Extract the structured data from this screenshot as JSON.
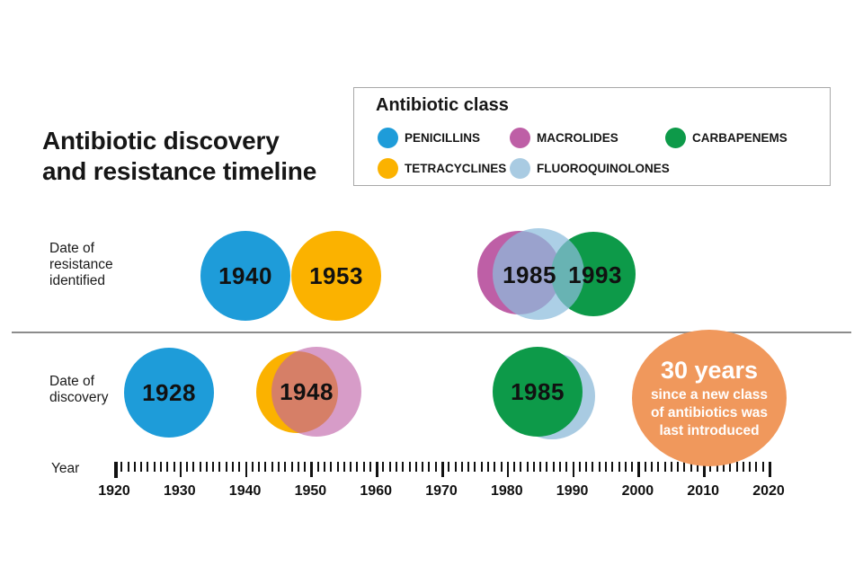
{
  "palette": {
    "penicillins_blue": "#1E9CD9",
    "tetracyclines_yellow": "#FBB200",
    "macrolides_magenta": "#BE5FA6",
    "fluoroquinolones_lightblue": "#A9CBE2",
    "carbapenems_green": "#0D9A49",
    "callout_orange": "#F0985C",
    "divider_gray": "#8c8c8c"
  },
  "title": {
    "line1": "Antibiotic discovery",
    "line2": "and resistance timeline"
  },
  "legend": {
    "title": "Antibiotic class",
    "items": [
      {
        "label": "PENICILLINS",
        "color": "#1E9CD9"
      },
      {
        "label": "MACROLIDES",
        "color": "#BE5FA6"
      },
      {
        "label": "CARBAPENEMS",
        "color": "#0D9A49"
      },
      {
        "label": "TETRACYCLINES",
        "color": "#FBB200"
      },
      {
        "label": "FLUOROQUINOLONES",
        "color": "#A9CBE2"
      }
    ]
  },
  "resistance_row": {
    "label_lines": [
      "Date of",
      "resistance",
      "identified"
    ],
    "bubbles": {
      "penicillins": "1940",
      "tetracyclines": "1953",
      "macrolides_fluoroquinolones": "1985",
      "carbapenems": "1993"
    }
  },
  "discovery_row": {
    "label_lines": [
      "Date of",
      "discovery"
    ],
    "bubbles": {
      "penicillins": "1928",
      "tetracyclines_macrolides": "1948",
      "carbapenems_fluoroquinolones": "1985"
    }
  },
  "callout": {
    "headline": "30 years",
    "line1": "since a new class",
    "line2": "of antibiotics was",
    "line3": "last introduced"
  },
  "axis": {
    "label": "Year",
    "start_year": 1920,
    "end_year": 2020,
    "minor_step": 1,
    "major_step": 10,
    "tick_labels": [
      "1920",
      "1930",
      "1940",
      "1950",
      "1960",
      "1970",
      "1980",
      "1990",
      "2000",
      "2010",
      "2020"
    ]
  },
  "chart_data": {
    "type": "scatter",
    "title": "Antibiotic discovery and resistance timeline",
    "xlabel": "Year",
    "xlim": [
      1920,
      2020
    ],
    "x_ticks": [
      1920,
      1930,
      1940,
      1950,
      1960,
      1970,
      1980,
      1990,
      2000,
      2010,
      2020
    ],
    "rows": [
      "Date of resistance identified",
      "Date of discovery"
    ],
    "series": [
      {
        "name": "PENICILLINS",
        "color": "#1E9CD9",
        "discovery_year": 1928,
        "resistance_year": 1940
      },
      {
        "name": "TETRACYCLINES",
        "color": "#FBB200",
        "discovery_year": 1948,
        "resistance_year": 1953
      },
      {
        "name": "MACROLIDES",
        "color": "#BE5FA6",
        "discovery_year": 1948,
        "resistance_year": 1985
      },
      {
        "name": "FLUOROQUINOLONES",
        "color": "#A9CBE2",
        "discovery_year": 1985,
        "resistance_year": 1985
      },
      {
        "name": "CARBAPENEMS",
        "color": "#0D9A49",
        "discovery_year": 1985,
        "resistance_year": 1993
      }
    ],
    "annotation": "30 years since a new class of antibiotics was last introduced",
    "legend_position": "top-right",
    "grid": false
  }
}
